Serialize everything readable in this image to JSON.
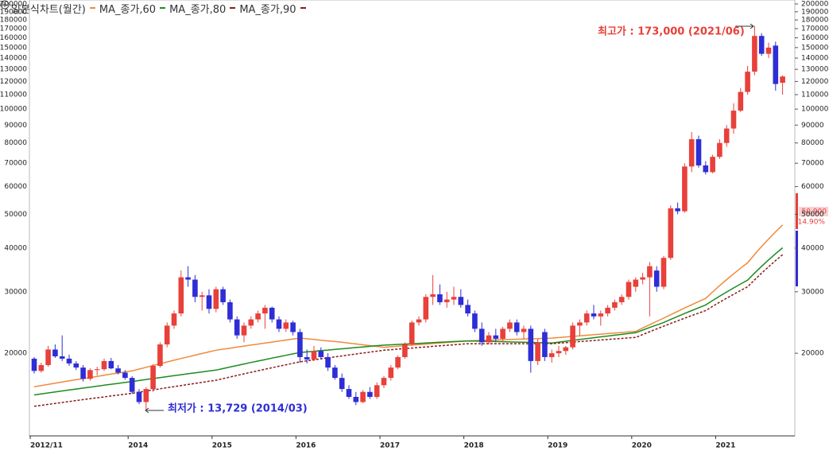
{
  "chart_data": {
    "type": "candlestick",
    "title": "일본식차트(월간)",
    "log_scale": true,
    "up_color": "#e8403a",
    "down_color": "#2e2ed6",
    "categories": [
      "2012/11",
      null,
      null,
      null,
      null,
      null,
      null,
      null,
      null,
      null,
      null,
      null,
      null,
      null,
      "2014",
      null,
      null,
      null,
      null,
      null,
      null,
      null,
      null,
      null,
      null,
      null,
      "2015",
      null,
      null,
      null,
      null,
      null,
      null,
      null,
      null,
      null,
      null,
      null,
      "2016",
      null,
      null,
      null,
      null,
      null,
      null,
      null,
      null,
      null,
      null,
      null,
      "2017",
      null,
      null,
      null,
      null,
      null,
      null,
      null,
      null,
      null,
      null,
      null,
      "2018",
      null,
      null,
      null,
      null,
      null,
      null,
      null,
      null,
      null,
      null,
      null,
      "2019",
      null,
      null,
      null,
      null,
      null,
      null,
      null,
      null,
      null,
      null,
      null,
      "2020",
      null,
      null,
      null,
      null,
      null,
      null,
      null,
      null,
      null,
      null,
      null,
      "2021",
      null,
      null,
      null,
      null,
      null,
      null,
      null,
      null,
      null
    ],
    "open": [
      19300,
      17800,
      18500,
      20500,
      19600,
      19300,
      18700,
      18200,
      16900,
      17900,
      18000,
      19000,
      18100,
      17600,
      17000,
      15500,
      14500,
      15800,
      18400,
      21200,
      24000,
      26000,
      33000,
      32500,
      29000,
      29300,
      26800,
      30500,
      28000,
      25000,
      22500,
      24000,
      25000,
      26000,
      27000,
      25000,
      23500,
      24500,
      23000,
      19500,
      19200,
      20300,
      19500,
      18200,
      17000,
      15800,
      15000,
      14500,
      15500,
      15000,
      16200,
      17000,
      18200,
      19500,
      21200,
      24500,
      25000,
      29000,
      29500,
      28000,
      28500,
      29000,
      27500,
      26000,
      23500,
      21500,
      22500,
      22000,
      23500,
      24500,
      23000,
      23500,
      19000,
      23000,
      19500,
      20000,
      20300,
      20800,
      24000,
      24500,
      26000,
      25500,
      26000,
      27000,
      28000,
      29000,
      31000,
      32500,
      33000,
      34500,
      31000,
      37500,
      52000,
      51000,
      68500,
      82000,
      69000,
      66000,
      73000,
      80000,
      88000,
      99000,
      112000,
      128000,
      162000,
      144000,
      152000,
      119000
    ],
    "high": [
      19500,
      18800,
      21000,
      21200,
      22500,
      19800,
      19000,
      18500,
      18100,
      18300,
      19300,
      19400,
      18500,
      17900,
      17200,
      15800,
      16000,
      18600,
      21500,
      24500,
      26500,
      34500,
      35500,
      33500,
      30000,
      30500,
      31000,
      31000,
      28500,
      25500,
      24500,
      25500,
      26500,
      27500,
      27200,
      25500,
      25000,
      24800,
      23500,
      20500,
      21000,
      20800,
      20000,
      18500,
      17500,
      16200,
      15500,
      15700,
      16000,
      16500,
      17200,
      18500,
      19700,
      21500,
      24800,
      25500,
      29500,
      33500,
      31500,
      30000,
      31000,
      30500,
      28500,
      26500,
      24500,
      23000,
      23500,
      23800,
      25000,
      25000,
      24000,
      24000,
      22000,
      23500,
      20500,
      21000,
      21000,
      24500,
      25000,
      26500,
      27500,
      26500,
      27500,
      28500,
      29500,
      32500,
      33000,
      34000,
      36500,
      35500,
      38000,
      53000,
      54000,
      70000,
      86000,
      84000,
      71000,
      74000,
      82000,
      90000,
      104000,
      115000,
      133000,
      173000,
      165000,
      155000,
      156000,
      125000
    ],
    "low": [
      17500,
      17600,
      18300,
      19400,
      19000,
      18400,
      17900,
      16600,
      16700,
      17300,
      17800,
      18000,
      17400,
      16800,
      15300,
      14300,
      13729,
      15500,
      18200,
      20800,
      23500,
      25500,
      31000,
      28000,
      26500,
      26000,
      26200,
      27500,
      24500,
      22000,
      21500,
      23500,
      24500,
      23500,
      24500,
      23000,
      23000,
      22500,
      18800,
      18700,
      19000,
      19200,
      17800,
      16800,
      15500,
      14800,
      14200,
      14400,
      14800,
      14800,
      15900,
      16700,
      18000,
      19300,
      21000,
      24000,
      24500,
      27500,
      27500,
      27000,
      27500,
      27000,
      25500,
      23000,
      21000,
      21200,
      21500,
      21500,
      23000,
      22500,
      22000,
      17600,
      18500,
      19000,
      18800,
      19500,
      19800,
      20500,
      22500,
      24000,
      25000,
      24000,
      25500,
      26500,
      27500,
      28500,
      30000,
      31500,
      25500,
      30000,
      30500,
      37000,
      50000,
      50500,
      66000,
      68000,
      65000,
      65500,
      72000,
      78000,
      85000,
      98000,
      110000,
      125000,
      142000,
      140000,
      113000,
      110000
    ],
    "close": [
      17800,
      18500,
      20500,
      19600,
      19300,
      18700,
      18200,
      16900,
      17900,
      18000,
      19000,
      18100,
      17600,
      17000,
      15500,
      14500,
      15800,
      18400,
      21200,
      24000,
      26000,
      33000,
      32500,
      29000,
      29300,
      26800,
      30500,
      28000,
      25000,
      22500,
      24000,
      25000,
      26000,
      27000,
      25000,
      23500,
      24500,
      23000,
      19500,
      19200,
      20300,
      19500,
      18200,
      17000,
      15800,
      15000,
      14500,
      15500,
      15000,
      16200,
      17000,
      18200,
      19500,
      21200,
      24500,
      25000,
      29000,
      29500,
      28000,
      28500,
      29000,
      27500,
      26000,
      23500,
      21500,
      22500,
      22000,
      23500,
      24500,
      23000,
      23500,
      19000,
      21500,
      19500,
      20000,
      20300,
      20800,
      24000,
      24500,
      26000,
      25500,
      26000,
      27000,
      28000,
      29000,
      32000,
      32500,
      33000,
      35500,
      31000,
      37500,
      52000,
      51000,
      68500,
      82000,
      69000,
      66000,
      73000,
      80000,
      88000,
      99000,
      112000,
      128000,
      162000,
      144000,
      150000,
      118000,
      124000
    ],
    "series": [
      {
        "name": "MA_종가,60",
        "color": "#f08a3c",
        "dashed": false,
        "values": [
          16040,
          16170,
          16290,
          16420,
          16540,
          16670,
          16800,
          16920,
          17050,
          17170,
          17300,
          17430,
          17550,
          17680,
          17800,
          18020,
          18230,
          18450,
          18670,
          18880,
          19100,
          19320,
          19530,
          19750,
          19970,
          20180,
          20400,
          20540,
          20680,
          20830,
          20970,
          21110,
          21250,
          21390,
          21530,
          21680,
          21820,
          21960,
          22100,
          22000,
          21900,
          21800,
          21700,
          21600,
          21500,
          21380,
          21270,
          21150,
          21030,
          20920,
          20800,
          20880,
          20950,
          21030,
          21100,
          21180,
          21250,
          21330,
          21400,
          21480,
          21550,
          21630,
          21700,
          21730,
          21770,
          21800,
          21830,
          21870,
          21900,
          21930,
          21970,
          22000,
          22030,
          22070,
          22100,
          22180,
          22270,
          22350,
          22430,
          22520,
          22600,
          22680,
          22770,
          22850,
          22930,
          23020,
          23100,
          23630,
          24150,
          24680,
          25200,
          25780,
          26370,
          26950,
          27530,
          28120,
          28700,
          29970,
          31230,
          32500,
          33770,
          35030,
          36300,
          38360,
          40420,
          42480,
          44540,
          46600
        ]
      },
      {
        "name": "MA_종가,80",
        "color": "#1c8c1c",
        "dashed": false,
        "values": [
          15200,
          15300,
          15400,
          15500,
          15600,
          15700,
          15800,
          15900,
          16000,
          16100,
          16200,
          16300,
          16400,
          16500,
          16600,
          16710,
          16820,
          16930,
          17030,
          17140,
          17250,
          17360,
          17470,
          17580,
          17680,
          17790,
          17900,
          18080,
          18270,
          18450,
          18630,
          18820,
          19000,
          19180,
          19370,
          19550,
          19730,
          19920,
          20100,
          20180,
          20270,
          20350,
          20430,
          20520,
          20600,
          20680,
          20770,
          20850,
          20930,
          21020,
          21100,
          21150,
          21200,
          21250,
          21300,
          21350,
          21400,
          21450,
          21500,
          21550,
          21600,
          21650,
          21700,
          21680,
          21650,
          21630,
          21600,
          21580,
          21550,
          21530,
          21500,
          21480,
          21450,
          21430,
          21400,
          21530,
          21650,
          21780,
          21900,
          22030,
          22150,
          22280,
          22400,
          22530,
          22650,
          22780,
          22900,
          23300,
          23700,
          24100,
          24500,
          25000,
          25500,
          26000,
          26500,
          27000,
          27500,
          28320,
          29130,
          29950,
          30770,
          31580,
          32400,
          33940,
          35480,
          37020,
          38560,
          40100
        ]
      },
      {
        "name": "MA_종가,90",
        "color": "#8b1a1a",
        "dashed": true,
        "values": [
          14100,
          14190,
          14280,
          14370,
          14460,
          14550,
          14640,
          14730,
          14820,
          14910,
          15000,
          15090,
          15180,
          15270,
          15360,
          15480,
          15590,
          15710,
          15820,
          15940,
          16050,
          16170,
          16280,
          16400,
          16510,
          16630,
          16740,
          16920,
          17100,
          17280,
          17460,
          17640,
          17820,
          18000,
          18180,
          18360,
          18540,
          18720,
          18900,
          19030,
          19150,
          19280,
          19400,
          19530,
          19650,
          19780,
          19900,
          20030,
          20150,
          20280,
          20400,
          20480,
          20550,
          20630,
          20700,
          20780,
          20850,
          20930,
          21000,
          21080,
          21150,
          21230,
          21300,
          21300,
          21300,
          21300,
          21300,
          21300,
          21300,
          21300,
          21300,
          21300,
          21300,
          21300,
          21300,
          21380,
          21450,
          21530,
          21600,
          21680,
          21750,
          21830,
          21900,
          21980,
          22050,
          22130,
          22200,
          22630,
          23050,
          23480,
          23900,
          24330,
          24770,
          25200,
          25630,
          26070,
          26500,
          27250,
          28000,
          28750,
          29500,
          30250,
          31000,
          32460,
          33920,
          35380,
          36840,
          38300
        ]
      }
    ],
    "ylim": [
      11600,
      200000
    ],
    "yticks": [
      20000,
      30000,
      40000,
      50000,
      60000,
      70000,
      80000,
      90000,
      100000,
      110000,
      120000,
      130000,
      140000,
      150000,
      160000,
      170000,
      180000,
      190000,
      200000
    ],
    "annotations": [
      {
        "text": "최고가 : 173,000 (2021/06)",
        "color": "#e8403a"
      },
      {
        "text": "최저가 : 13,729 (2014/03)",
        "color": "#2e2ed6"
      }
    ],
    "current_price_label": "50,900",
    "change_label": "14.90%"
  }
}
